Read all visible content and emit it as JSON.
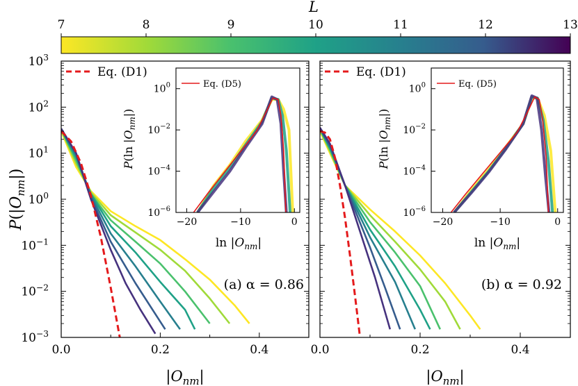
{
  "colorbar": {
    "label": "L",
    "tick_labels": [
      "7",
      "8",
      "9",
      "10",
      "11",
      "12",
      "13"
    ],
    "ticks": [
      7,
      8,
      9,
      10,
      11,
      12,
      13
    ],
    "range": [
      7,
      13
    ],
    "colormap": "viridis (reversed: L=7 yellow, L=13 dark purple)"
  },
  "ylabel": "P(|O_nm|)",
  "ylabel_parts": {
    "p": "P",
    "open": "(|",
    "o": "O",
    "sub": "nm",
    "close": "|)"
  },
  "xlabel_parts": {
    "open": "|",
    "o": "O",
    "sub": "nm",
    "close": "|"
  },
  "main_legend": "Eq. (D1)",
  "inset_legend": "Eq. (D5)",
  "inset_ylabel_parts": {
    "p": "P",
    "open": "(ln |",
    "o": "O",
    "sub": "nm",
    "close": "|)"
  },
  "inset_xlabel_parts": {
    "open": "ln |",
    "o": "O",
    "sub": "nm",
    "close": "|"
  },
  "chart_data": [
    {
      "type": "line",
      "panel": "a",
      "annotation": "(a) α = 0.86",
      "alpha": 0.86,
      "xlabel": "|O_nm|",
      "ylabel": "P(|O_nm|)",
      "xlim": [
        0,
        0.5
      ],
      "ylim": [
        0.001,
        1000
      ],
      "yscale": "log",
      "x_tick_labels": [
        "0.0",
        "0.2",
        "0.4"
      ],
      "x_ticks": [
        0,
        0.2,
        0.4
      ],
      "y_tick_labels": [
        "10^-3",
        "10^-2",
        "10^-1",
        "10^0",
        "10^1",
        "10^2",
        "10^3"
      ],
      "legend": [
        "Eq. (D1)"
      ],
      "series": [
        {
          "name": "L = 7",
          "L": 7,
          "color": "#fde725",
          "x": [
            0,
            0.03,
            0.06,
            0.1,
            0.15,
            0.2,
            0.25,
            0.3,
            0.35,
            0.38
          ],
          "y": [
            30,
            5,
            1.5,
            0.55,
            0.26,
            0.13,
            0.05,
            0.018,
            0.005,
            0.002
          ]
        },
        {
          "name": "L = 8",
          "L": 8,
          "color": "#a0da39",
          "x": [
            0,
            0.03,
            0.06,
            0.1,
            0.15,
            0.2,
            0.25,
            0.3,
            0.34
          ],
          "y": [
            32,
            6,
            1.4,
            0.45,
            0.19,
            0.08,
            0.028,
            0.007,
            0.002
          ]
        },
        {
          "name": "L = 9",
          "L": 9,
          "color": "#4ac16d",
          "x": [
            0,
            0.03,
            0.06,
            0.1,
            0.15,
            0.2,
            0.25,
            0.3
          ],
          "y": [
            33,
            7,
            1.3,
            0.35,
            0.12,
            0.04,
            0.01,
            0.002
          ]
        },
        {
          "name": "L = 10",
          "L": 10,
          "color": "#1fa187",
          "x": [
            0,
            0.03,
            0.06,
            0.1,
            0.15,
            0.2,
            0.25,
            0.27
          ],
          "y": [
            33,
            8,
            1.3,
            0.26,
            0.07,
            0.016,
            0.004,
            0.0015
          ]
        },
        {
          "name": "L = 11",
          "L": 11,
          "color": "#277f8e",
          "x": [
            0,
            0.03,
            0.06,
            0.1,
            0.15,
            0.2,
            0.24
          ],
          "y": [
            34,
            9,
            1.2,
            0.18,
            0.035,
            0.006,
            0.0015
          ]
        },
        {
          "name": "L = 12",
          "L": 12,
          "color": "#365c8d",
          "x": [
            0,
            0.03,
            0.06,
            0.1,
            0.15,
            0.2,
            0.21
          ],
          "y": [
            34,
            10,
            1.1,
            0.12,
            0.015,
            0.0022,
            0.0015
          ]
        },
        {
          "name": "L = 13",
          "L": 13,
          "color": "#46327e",
          "x": [
            0,
            0.03,
            0.06,
            0.1,
            0.13,
            0.16,
            0.19
          ],
          "y": [
            34,
            10,
            1.0,
            0.08,
            0.015,
            0.004,
            0.0012
          ]
        },
        {
          "name": "Eq. (D1)",
          "color": "#e41a1c",
          "dashed": true,
          "x": [
            0,
            0.02,
            0.04,
            0.06,
            0.08,
            0.1,
            0.12
          ],
          "y": [
            30,
            18,
            6,
            1.2,
            0.15,
            0.012,
            0.0008
          ]
        }
      ],
      "inset": {
        "xlabel": "ln |O_nm|",
        "ylabel": "P(ln |O_nm|)",
        "xlim": [
          -22,
          1
        ],
        "ylim": [
          1e-06,
          10
        ],
        "yscale": "log",
        "x_tick_labels": [
          "−20",
          "−10",
          "0"
        ],
        "x_ticks": [
          -20,
          -10,
          0
        ],
        "y_tick_labels": [
          "10^-6",
          "10^-4",
          "10^-2",
          "10^0"
        ],
        "legend": [
          "Eq. (D5)"
        ],
        "series": [
          {
            "name": "L = 7",
            "L": 7,
            "color": "#fde725",
            "x": [
              -18,
              -15,
              -12,
              -9,
              -6,
              -4.2,
              -3,
              -2.0,
              -1.0,
              -0.3
            ],
            "y": [
              1e-06,
              2e-05,
              0.0002,
              0.003,
              0.03,
              0.3,
              0.3,
              0.1,
              0.01,
              1e-06
            ]
          },
          {
            "name": "L = 10",
            "L": 10,
            "color": "#1fa187",
            "x": [
              -18,
              -15,
              -12,
              -9,
              -6,
              -4.2,
              -3,
              -2.2,
              -1.5,
              -0.8
            ],
            "y": [
              1e-06,
              1.5e-05,
              0.00015,
              0.002,
              0.025,
              0.35,
              0.3,
              0.05,
              0.001,
              1e-06
            ]
          },
          {
            "name": "L = 13",
            "L": 13,
            "color": "#46327e",
            "x": [
              -18,
              -15,
              -12,
              -9,
              -6,
              -4.2,
              -3.2,
              -2.5,
              -2.0,
              -1.5
            ],
            "y": [
              1e-06,
              1e-05,
              0.0001,
              0.0015,
              0.02,
              0.4,
              0.3,
              0.02,
              0.0001,
              1e-06
            ]
          },
          {
            "name": "Eq. (D5)",
            "color": "#e41a1c",
            "x": [
              -19,
              -16,
              -13,
              -10,
              -7,
              -5,
              -4,
              -3,
              -2.5,
              -2.0,
              -1.6
            ],
            "y": [
              8e-07,
              9e-06,
              9e-05,
              0.0009,
              0.009,
              0.1,
              0.35,
              0.3,
              0.05,
              0.001,
              1e-06
            ]
          }
        ]
      }
    },
    {
      "type": "line",
      "panel": "b",
      "annotation": "(b) α = 0.92",
      "alpha": 0.92,
      "xlabel": "|O_nm|",
      "ylabel": "P(|O_nm|)",
      "xlim": [
        0,
        0.5
      ],
      "ylim": [
        0.001,
        1000
      ],
      "yscale": "log",
      "x_tick_labels": [
        "0.0",
        "0.2",
        "0.4"
      ],
      "x_ticks": [
        0,
        0.2,
        0.4
      ],
      "legend": [
        "Eq. (D1)"
      ],
      "series": [
        {
          "name": "L = 7",
          "L": 7,
          "color": "#fde725",
          "x": [
            0,
            0.02,
            0.05,
            0.1,
            0.15,
            0.2,
            0.25,
            0.3,
            0.32
          ],
          "y": [
            30,
            10,
            2,
            0.6,
            0.2,
            0.06,
            0.015,
            0.003,
            0.0015
          ]
        },
        {
          "name": "L = 8",
          "L": 8,
          "color": "#a0da39",
          "x": [
            0,
            0.02,
            0.05,
            0.1,
            0.15,
            0.2,
            0.25,
            0.28
          ],
          "y": [
            32,
            11,
            2,
            0.45,
            0.12,
            0.03,
            0.006,
            0.0015
          ]
        },
        {
          "name": "L = 9",
          "L": 9,
          "color": "#4ac16d",
          "x": [
            0,
            0.02,
            0.05,
            0.1,
            0.15,
            0.2,
            0.24
          ],
          "y": [
            33,
            12,
            2,
            0.32,
            0.07,
            0.013,
            0.0015
          ]
        },
        {
          "name": "L = 10",
          "L": 10,
          "color": "#1fa187",
          "x": [
            0,
            0.02,
            0.05,
            0.1,
            0.15,
            0.2,
            0.22
          ],
          "y": [
            34,
            13,
            2,
            0.22,
            0.035,
            0.004,
            0.0015
          ]
        },
        {
          "name": "L = 11",
          "L": 11,
          "color": "#277f8e",
          "x": [
            0,
            0.02,
            0.05,
            0.1,
            0.15,
            0.19
          ],
          "y": [
            35,
            14,
            2,
            0.15,
            0.016,
            0.0015
          ]
        },
        {
          "name": "L = 12",
          "L": 12,
          "color": "#365c8d",
          "x": [
            0,
            0.02,
            0.05,
            0.1,
            0.13,
            0.16
          ],
          "y": [
            35,
            15,
            2,
            0.09,
            0.012,
            0.0015
          ]
        },
        {
          "name": "L = 13",
          "L": 13,
          "color": "#46327e",
          "x": [
            0,
            0.02,
            0.05,
            0.08,
            0.11,
            0.14
          ],
          "y": [
            36,
            16,
            2,
            0.2,
            0.02,
            0.0015
          ]
        },
        {
          "name": "Eq. (D1)",
          "color": "#e41a1c",
          "dashed": true,
          "x": [
            0,
            0.01,
            0.02,
            0.03,
            0.04,
            0.05,
            0.06,
            0.07,
            0.08
          ],
          "y": [
            30,
            28,
            20,
            8,
            2,
            0.4,
            0.06,
            0.008,
            0.001
          ]
        }
      ],
      "inset": {
        "xlabel": "ln |O_nm|",
        "ylabel": "P(ln |O_nm|)",
        "xlim": [
          -22,
          1
        ],
        "ylim": [
          1e-06,
          10
        ],
        "yscale": "log",
        "x_tick_labels": [
          "−20",
          "−10",
          "0"
        ],
        "x_ticks": [
          -20,
          -10,
          0
        ],
        "y_tick_labels": [
          "10^-6",
          "10^-4",
          "10^-2",
          "10^0"
        ],
        "legend": [
          "Eq. (D5)"
        ],
        "series": [
          {
            "name": "L = 7",
            "L": 7,
            "color": "#fde725",
            "x": [
              -18,
              -15,
              -12,
              -9,
              -6,
              -4.5,
              -3.5,
              -2.3,
              -1.2,
              -0.4
            ],
            "y": [
              1e-06,
              1.2e-05,
              0.00012,
              0.0015,
              0.02,
              0.35,
              0.35,
              0.05,
              0.001,
              1e-06
            ]
          },
          {
            "name": "L = 10",
            "L": 10,
            "color": "#1fa187",
            "x": [
              -18,
              -15,
              -12,
              -9,
              -6,
              -4.5,
              -3.5,
              -2.5,
              -1.6,
              -0.9
            ],
            "y": [
              1e-06,
              1e-05,
              0.0001,
              0.0013,
              0.02,
              0.4,
              0.35,
              0.03,
              0.0003,
              1e-06
            ]
          },
          {
            "name": "L = 13",
            "L": 13,
            "color": "#46327e",
            "x": [
              -18,
              -15,
              -12,
              -9,
              -6,
              -4.5,
              -3.6,
              -2.8,
              -2.1,
              -1.5
            ],
            "y": [
              1e-06,
              9e-06,
              9e-05,
              0.0012,
              0.02,
              0.45,
              0.35,
              0.01,
              5e-05,
              1e-06
            ]
          },
          {
            "name": "Eq. (D5)",
            "color": "#e41a1c",
            "x": [
              -19,
              -16,
              -13,
              -10,
              -7,
              -5,
              -4,
              -3.2,
              -2.6,
              -2.0,
              -1.6
            ],
            "y": [
              7e-07,
              8e-06,
              8e-05,
              0.0008,
              0.008,
              0.1,
              0.4,
              0.3,
              0.03,
              0.0005,
              1e-06
            ]
          }
        ]
      }
    }
  ]
}
